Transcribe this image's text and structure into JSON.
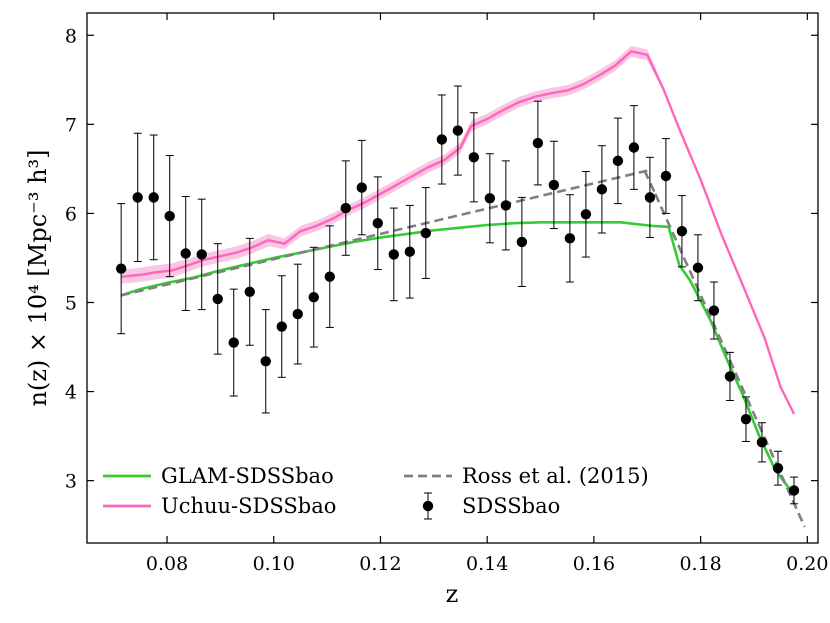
{
  "chart_data": {
    "type": "line",
    "title": "",
    "xlabel": "z",
    "ylabel": "n(z) × 10⁴ [Mpc⁻³ h³]",
    "xlim": [
      0.065,
      0.202
    ],
    "ylim": [
      2.3,
      8.25
    ],
    "xticks": [
      0.08,
      0.1,
      0.12,
      0.14,
      0.16,
      0.18,
      0.2
    ],
    "xtick_labels": [
      "0.08",
      "0.10",
      "0.12",
      "0.14",
      "0.16",
      "0.18",
      "0.20"
    ],
    "yticks": [
      3,
      4,
      5,
      6,
      7,
      8
    ],
    "ytick_labels": [
      "3",
      "4",
      "5",
      "6",
      "7",
      "8"
    ],
    "legend_position": "lower-left, two columns",
    "series": [
      {
        "name": "GLAM-SDSSbao",
        "kind": "line",
        "color": "#33cc33",
        "x": [
          0.0714,
          0.075,
          0.08,
          0.085,
          0.09,
          0.095,
          0.1,
          0.105,
          0.11,
          0.115,
          0.12,
          0.125,
          0.13,
          0.135,
          0.14,
          0.145,
          0.15,
          0.155,
          0.16,
          0.165,
          0.168,
          0.171,
          0.174,
          0.176,
          0.178,
          0.18,
          0.182,
          0.185,
          0.188,
          0.191,
          0.194,
          0.197
        ],
        "y": [
          5.08,
          5.15,
          5.22,
          5.28,
          5.36,
          5.43,
          5.5,
          5.56,
          5.62,
          5.68,
          5.73,
          5.77,
          5.81,
          5.84,
          5.87,
          5.89,
          5.9,
          5.9,
          5.9,
          5.9,
          5.88,
          5.86,
          5.85,
          5.42,
          5.25,
          5.02,
          4.78,
          4.35,
          3.95,
          3.5,
          3.12,
          2.88
        ]
      },
      {
        "name": "Uchuu-SDSSbao",
        "kind": "line_band",
        "color": "#ff66bb",
        "band_color": "#f7b3d9",
        "x": [
          0.0714,
          0.075,
          0.078,
          0.081,
          0.084,
          0.087,
          0.09,
          0.093,
          0.096,
          0.099,
          0.102,
          0.105,
          0.108,
          0.111,
          0.114,
          0.117,
          0.12,
          0.123,
          0.126,
          0.129,
          0.132,
          0.135,
          0.137,
          0.14,
          0.143,
          0.146,
          0.149,
          0.152,
          0.155,
          0.158,
          0.161,
          0.164,
          0.167,
          0.17,
          0.173,
          0.176,
          0.18,
          0.184,
          0.188,
          0.192,
          0.195,
          0.1975
        ],
        "y": [
          5.29,
          5.31,
          5.34,
          5.36,
          5.42,
          5.48,
          5.52,
          5.56,
          5.62,
          5.7,
          5.66,
          5.8,
          5.86,
          5.94,
          6.04,
          6.12,
          6.22,
          6.32,
          6.42,
          6.52,
          6.6,
          6.74,
          6.98,
          7.06,
          7.16,
          7.25,
          7.31,
          7.35,
          7.38,
          7.45,
          7.55,
          7.66,
          7.82,
          7.78,
          7.4,
          6.95,
          6.38,
          5.75,
          5.18,
          4.6,
          4.05,
          3.75
        ],
        "band_halfwidth": [
          0.08,
          0.08,
          0.08,
          0.08,
          0.07,
          0.07,
          0.07,
          0.07,
          0.07,
          0.07,
          0.06,
          0.06,
          0.06,
          0.06,
          0.06,
          0.06,
          0.06,
          0.06,
          0.06,
          0.06,
          0.06,
          0.06,
          0.06,
          0.06,
          0.06,
          0.06,
          0.06,
          0.06,
          0.06,
          0.06,
          0.06,
          0.06,
          0.06,
          0.06,
          0.03,
          0.02,
          0.02,
          0.02,
          0.02,
          0.02,
          0.02,
          0.02
        ]
      },
      {
        "name": "Ross et al. (2015)",
        "kind": "dashed",
        "color": "#808080",
        "segments": [
          {
            "x": [
              0.0714,
              0.17
            ],
            "y": [
              5.08,
              6.48
            ]
          },
          {
            "x": [
              0.1695,
              0.1715
            ],
            "y": [
              6.48,
              6.22
            ]
          },
          {
            "x": [
              0.1715,
              0.1995
            ],
            "y": [
              6.22,
              2.48
            ]
          }
        ]
      },
      {
        "name": "SDSSbao",
        "kind": "errorbar",
        "color": "#000000",
        "x": [
          0.0714,
          0.0745,
          0.0775,
          0.0805,
          0.0835,
          0.0865,
          0.0895,
          0.0925,
          0.0955,
          0.0985,
          0.1015,
          0.1045,
          0.1075,
          0.1105,
          0.1135,
          0.1165,
          0.1195,
          0.1225,
          0.1255,
          0.1285,
          0.1315,
          0.1345,
          0.1375,
          0.1405,
          0.1435,
          0.1465,
          0.1495,
          0.1525,
          0.1555,
          0.1585,
          0.1615,
          0.1645,
          0.1675,
          0.1705,
          0.1735,
          0.1765,
          0.1795,
          0.1825,
          0.1855,
          0.1885,
          0.1915,
          0.1945,
          0.1975
        ],
        "y": [
          5.38,
          6.18,
          6.18,
          5.97,
          5.55,
          5.54,
          5.04,
          4.55,
          5.12,
          4.34,
          4.73,
          4.87,
          5.06,
          5.29,
          6.06,
          6.29,
          5.89,
          5.54,
          5.57,
          5.78,
          6.83,
          6.93,
          6.63,
          6.17,
          6.09,
          5.68,
          6.79,
          6.32,
          5.72,
          5.99,
          6.27,
          6.59,
          6.74,
          6.18,
          6.42,
          5.8,
          5.39,
          4.91,
          4.17,
          3.69,
          3.43,
          3.14,
          2.89
        ],
        "yerr": [
          0.73,
          0.72,
          0.7,
          0.68,
          0.64,
          0.62,
          0.62,
          0.6,
          0.6,
          0.58,
          0.57,
          0.56,
          0.56,
          0.57,
          0.53,
          0.53,
          0.52,
          0.52,
          0.52,
          0.51,
          0.5,
          0.5,
          0.5,
          0.5,
          0.5,
          0.5,
          0.47,
          0.49,
          0.49,
          0.48,
          0.49,
          0.48,
          0.47,
          0.45,
          0.42,
          0.4,
          0.37,
          0.32,
          0.27,
          0.25,
          0.22,
          0.19,
          0.15
        ]
      }
    ]
  }
}
